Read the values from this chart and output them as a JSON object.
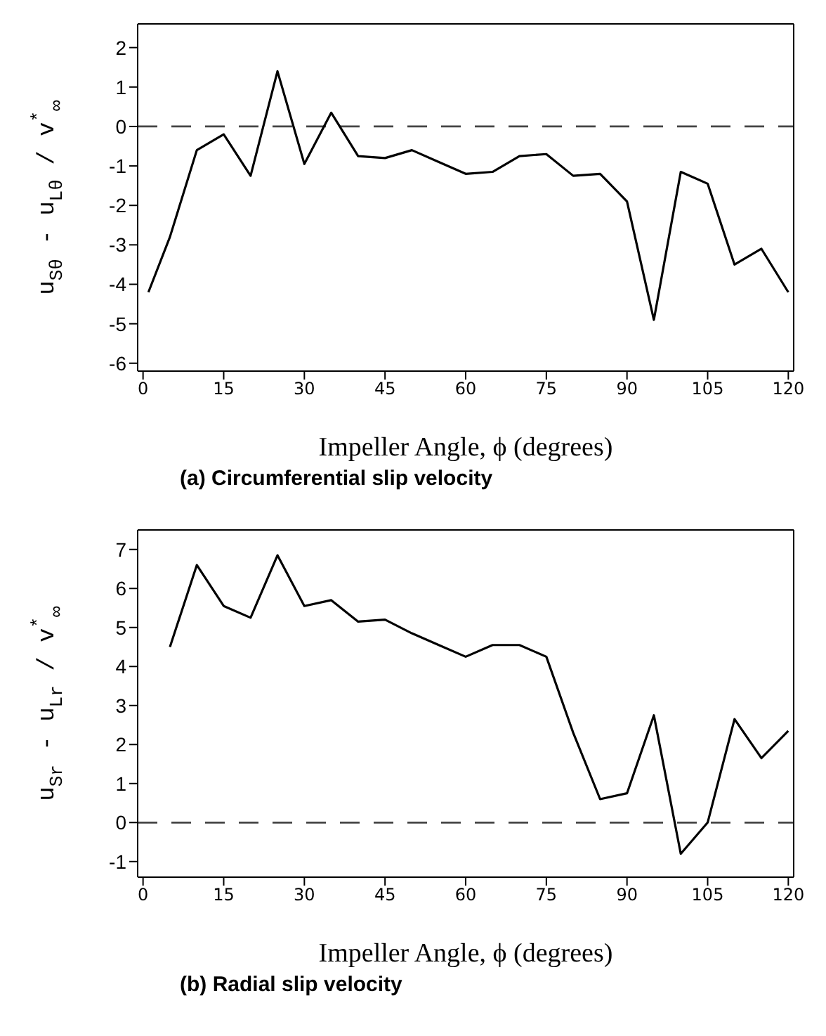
{
  "chart_data": [
    {
      "type": "line",
      "title": "(a)  Circumferential slip velocity",
      "xlabel": "Impeller Angle,  ϕ (degrees)",
      "ylabel": "u$_{Sθ}$ - u$_{Lθ}$ / v$^{*}$$_{∞}$",
      "series": [
        {
          "color": "#000000",
          "x": [
            1,
            5,
            10,
            15,
            20,
            25,
            30,
            35,
            40,
            45,
            50,
            55,
            60,
            65,
            70,
            75,
            80,
            85,
            90,
            95,
            100,
            105,
            110,
            115,
            120
          ],
          "values": [
            -4.2,
            -2.8,
            -0.6,
            -0.2,
            -1.25,
            1.4,
            -0.95,
            0.35,
            -0.75,
            -0.8,
            -0.6,
            -0.9,
            -1.2,
            -1.15,
            -0.75,
            -0.7,
            -1.25,
            -1.2,
            -1.9,
            -4.9,
            -1.15,
            -1.45,
            -3.5,
            -3.1,
            -4.2
          ]
        }
      ],
      "xlim": [
        -1,
        121
      ],
      "xticks": [
        0,
        15,
        30,
        45,
        60,
        75,
        90,
        105,
        120
      ],
      "ylim": [
        -6.2,
        2.6
      ],
      "yticks": [
        -6,
        -5,
        -4,
        -3,
        -2,
        -1,
        0,
        1,
        2
      ],
      "ref_lines": [
        {
          "axis": "y",
          "value": 0,
          "line_style": "dashed",
          "color": "#444444"
        }
      ],
      "marker": "none",
      "line_style": "solid"
    },
    {
      "type": "line",
      "title": "(b)  Radial slip velocity",
      "xlabel": "Impeller Angle,  ϕ (degrees)",
      "ylabel": "u$_{Sr}$ - u$_{Lr}$ / v$^{*}$$_{∞}$",
      "series": [
        {
          "color": "#000000",
          "x": [
            5,
            10,
            15,
            20,
            25,
            30,
            35,
            40,
            45,
            50,
            55,
            60,
            65,
            70,
            75,
            80,
            85,
            90,
            95,
            100,
            105,
            110,
            115,
            120
          ],
          "values": [
            4.5,
            6.6,
            5.55,
            5.25,
            6.85,
            5.55,
            5.7,
            5.15,
            5.2,
            4.85,
            4.55,
            4.25,
            4.55,
            4.55,
            4.25,
            2.3,
            0.6,
            0.75,
            2.75,
            -0.8,
            0,
            2.65,
            1.65,
            2.35
          ]
        }
      ],
      "xlim": [
        -1,
        121
      ],
      "xticks": [
        0,
        15,
        30,
        45,
        60,
        75,
        90,
        105,
        120
      ],
      "ylim": [
        -1.4,
        7.5
      ],
      "yticks": [
        -1,
        0,
        1,
        2,
        3,
        4,
        5,
        6,
        7
      ],
      "ref_lines": [
        {
          "axis": "y",
          "value": 0,
          "line_style": "dashed",
          "color": "#444444"
        }
      ],
      "marker": "none",
      "line_style": "solid"
    }
  ]
}
